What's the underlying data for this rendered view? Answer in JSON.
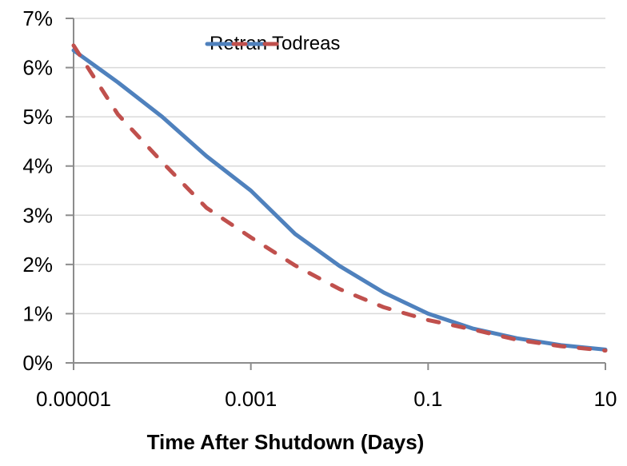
{
  "chart_data": {
    "type": "line",
    "title": "",
    "xlabel": "Time After Shutdown (Days)",
    "ylabel": "",
    "x_scale": "log10",
    "xlim": [
      1e-05,
      10
    ],
    "ylim_percent": [
      0,
      7
    ],
    "grid": "horizontal",
    "legend_position": "top-center",
    "y_tick_labels": [
      "0%",
      "1%",
      "2%",
      "3%",
      "4%",
      "5%",
      "6%",
      "7%"
    ],
    "x_ticks": [
      {
        "value": 1e-05,
        "label": "0.00001"
      },
      {
        "value": 0.001,
        "label": "0.001"
      },
      {
        "value": 0.1,
        "label": "0.1"
      },
      {
        "value": 10,
        "label": "10"
      }
    ],
    "x": [
      1e-05,
      3.16e-05,
      0.0001,
      0.000316,
      0.001,
      0.00316,
      0.01,
      0.0316,
      0.1,
      0.316,
      1,
      3.16,
      10
    ],
    "series": [
      {
        "name": "Retran",
        "color": "#4F81BD",
        "line_style": "solid",
        "values_percent": [
          6.35,
          5.7,
          5.0,
          4.2,
          3.5,
          2.62,
          1.97,
          1.43,
          1.0,
          0.7,
          0.5,
          0.36,
          0.27
        ]
      },
      {
        "name": "Todreas",
        "color": "#C0504D",
        "line_style": "dashed",
        "values_percent": [
          6.45,
          5.05,
          4.08,
          3.15,
          2.55,
          1.98,
          1.5,
          1.13,
          0.87,
          0.68,
          0.47,
          0.34,
          0.25
        ]
      }
    ],
    "colors": {
      "axis": "#8C8C8C",
      "gridline": "#D9D9D9",
      "text": "#000000",
      "background": "#FFFFFF"
    }
  }
}
